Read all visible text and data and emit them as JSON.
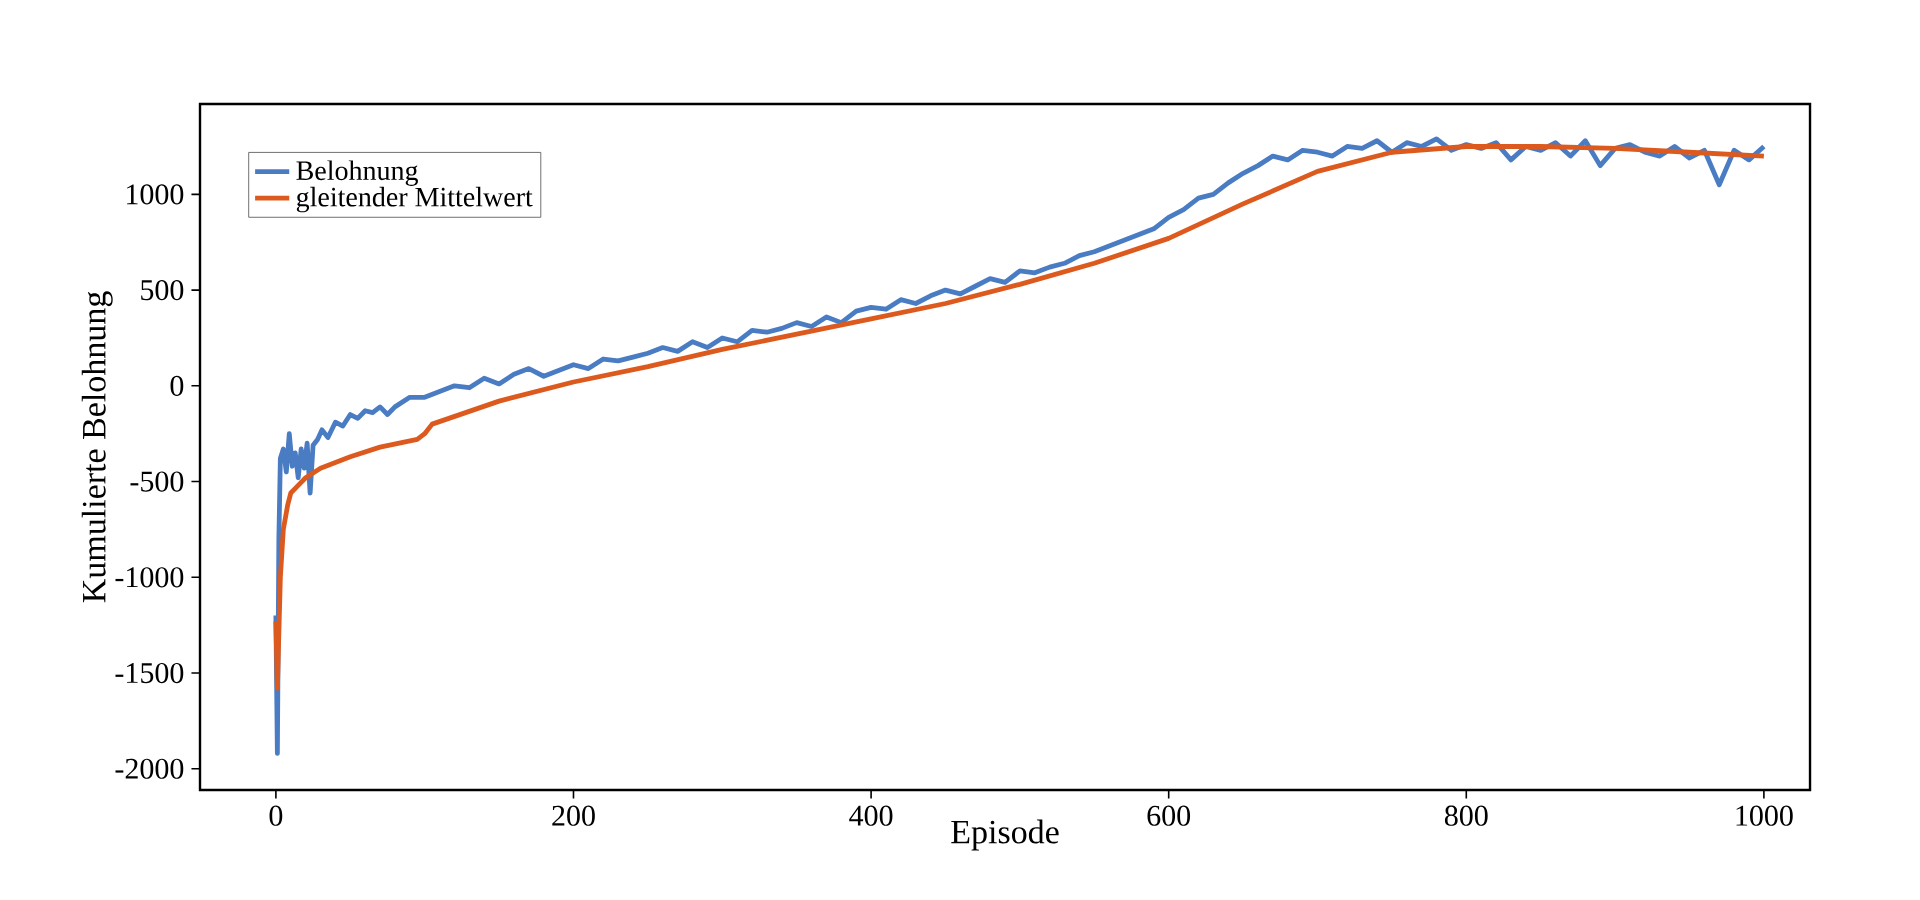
{
  "chart_data": {
    "type": "line",
    "xlabel": "Episode",
    "ylabel": "Kumulierte Belohnung",
    "xlim": [
      -51,
      1031
    ],
    "ylim": [
      -2111,
      1472
    ],
    "xticks": [
      0,
      200,
      400,
      600,
      800,
      1000
    ],
    "yticks": [
      -2000,
      -1500,
      -1000,
      -500,
      0,
      500,
      1000
    ],
    "legend": "top left",
    "grid": false,
    "marker": "none",
    "line_style": "solid",
    "series": [
      {
        "name": "Belohnung",
        "color": "#4a7cc4",
        "x": [
          0,
          1,
          2,
          3,
          5,
          7,
          9,
          11,
          13,
          15,
          17,
          19,
          21,
          23,
          25,
          28,
          31,
          35,
          40,
          45,
          50,
          55,
          60,
          65,
          70,
          75,
          80,
          90,
          100,
          110,
          120,
          130,
          140,
          150,
          160,
          170,
          180,
          190,
          200,
          210,
          220,
          230,
          240,
          250,
          260,
          270,
          280,
          290,
          300,
          310,
          320,
          330,
          340,
          350,
          360,
          370,
          380,
          390,
          400,
          410,
          420,
          430,
          440,
          450,
          460,
          470,
          480,
          490,
          500,
          510,
          520,
          530,
          540,
          550,
          560,
          570,
          580,
          590,
          600,
          610,
          620,
          630,
          640,
          650,
          660,
          670,
          680,
          690,
          700,
          710,
          720,
          730,
          740,
          750,
          760,
          770,
          780,
          790,
          800,
          810,
          820,
          830,
          840,
          850,
          860,
          870,
          880,
          890,
          900,
          910,
          920,
          930,
          940,
          950,
          960,
          970,
          980,
          990,
          1000
        ],
        "values": [
          -1200,
          -1920,
          -800,
          -380,
          -330,
          -450,
          -250,
          -420,
          -350,
          -480,
          -330,
          -430,
          -300,
          -560,
          -310,
          -280,
          -230,
          -270,
          -190,
          -210,
          -150,
          -170,
          -130,
          -140,
          -110,
          -150,
          -110,
          -60,
          -60,
          -30,
          0,
          -10,
          40,
          10,
          60,
          90,
          50,
          80,
          110,
          90,
          140,
          130,
          150,
          170,
          200,
          180,
          230,
          200,
          250,
          230,
          290,
          280,
          300,
          330,
          310,
          360,
          330,
          390,
          410,
          400,
          450,
          430,
          470,
          500,
          480,
          520,
          560,
          540,
          600,
          590,
          620,
          640,
          680,
          700,
          730,
          760,
          790,
          820,
          880,
          920,
          980,
          1000,
          1060,
          1110,
          1150,
          1200,
          1180,
          1230,
          1220,
          1200,
          1250,
          1240,
          1280,
          1220,
          1270,
          1250,
          1290,
          1230,
          1260,
          1240,
          1270,
          1180,
          1250,
          1230,
          1270,
          1200,
          1280,
          1150,
          1240,
          1260,
          1220,
          1200,
          1250,
          1190,
          1230,
          1050,
          1230,
          1180,
          1250
        ]
      },
      {
        "name": "gleitender Mittelwert",
        "color": "#dd5a1e",
        "x": [
          0,
          1,
          3,
          5,
          8,
          10,
          15,
          20,
          30,
          50,
          70,
          95,
          100,
          105,
          150,
          200,
          250,
          300,
          350,
          400,
          450,
          500,
          550,
          600,
          650,
          700,
          750,
          800,
          850,
          900,
          950,
          1000
        ],
        "values": [
          -1230,
          -1580,
          -1000,
          -750,
          -620,
          -560,
          -520,
          -480,
          -430,
          -370,
          -320,
          -280,
          -250,
          -200,
          -80,
          20,
          100,
          190,
          270,
          350,
          430,
          530,
          640,
          770,
          950,
          1120,
          1220,
          1250,
          1250,
          1240,
          1220,
          1200
        ]
      }
    ]
  }
}
